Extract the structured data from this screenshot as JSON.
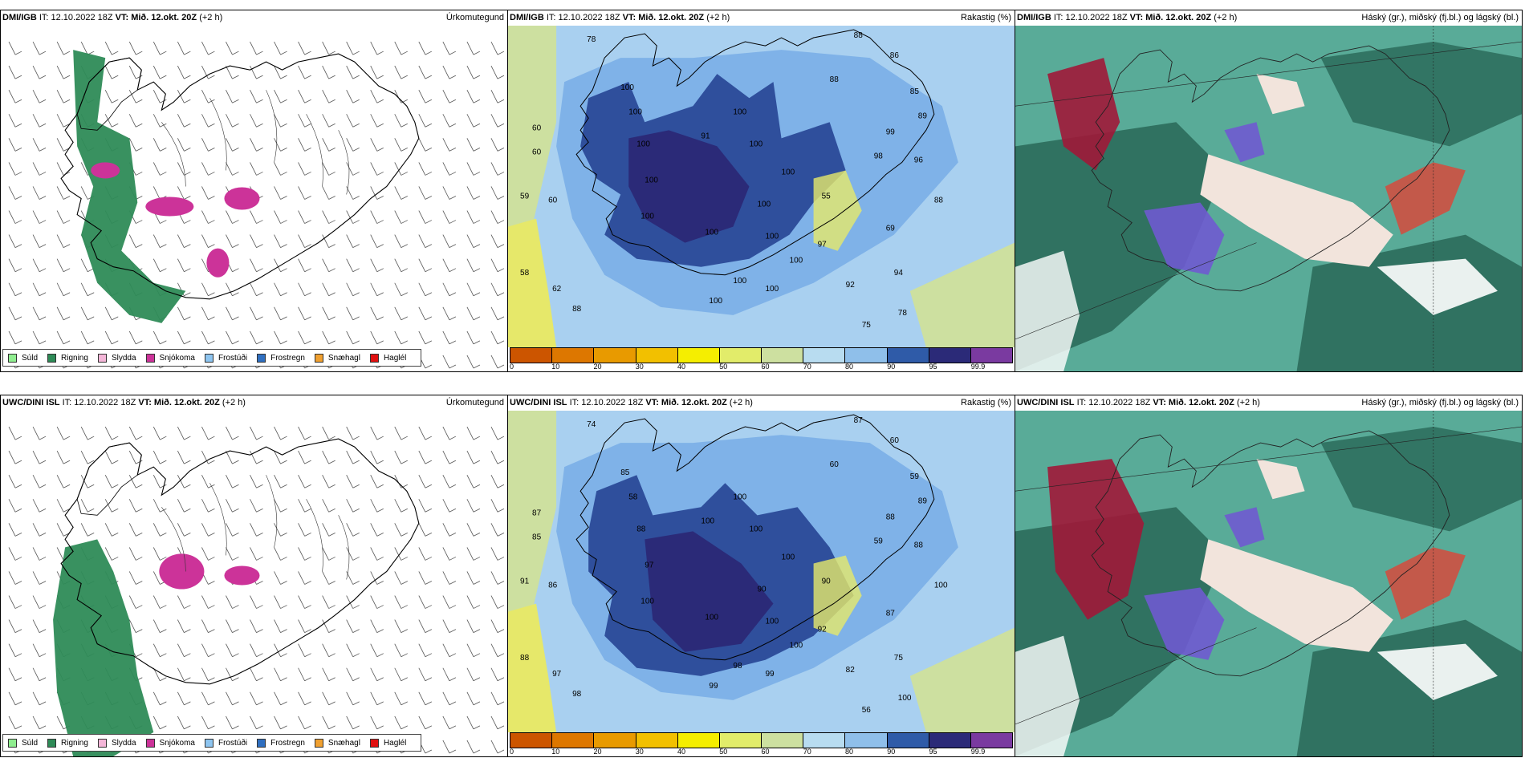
{
  "rows": [
    {
      "model": "DMI/IGB",
      "it": "IT: 12.10.2022 18Z",
      "vt_label": "VT:",
      "vt": "Mið. 12.okt. 20Z",
      "offset": "(+2 h)",
      "labels_rh": [
        "78",
        "88",
        "86",
        "88",
        "85",
        "89",
        "99",
        "98",
        "96",
        "60",
        "60",
        "59",
        "60",
        "58",
        "62",
        "88",
        "100",
        "100",
        "100",
        "100",
        "100",
        "100",
        "100",
        "100",
        "100",
        "100",
        "100",
        "100",
        "100",
        "100",
        "100",
        "91",
        "55",
        "97",
        "92",
        "94",
        "69",
        "78",
        "75",
        "88"
      ]
    },
    {
      "model": "UWC/DINI ISL",
      "it": "IT: 12.10.2022 18Z",
      "vt_label": "VT:",
      "vt": "Mið. 12.okt. 20Z",
      "offset": "(+2 h)",
      "labels_rh": [
        "74",
        "87",
        "60",
        "60",
        "59",
        "89",
        "88",
        "59",
        "88",
        "87",
        "85",
        "91",
        "86",
        "88",
        "97",
        "98",
        "85",
        "58",
        "88",
        "97",
        "100",
        "100",
        "100",
        "100",
        "90",
        "100",
        "100",
        "98",
        "99",
        "99",
        "100",
        "100",
        "90",
        "92",
        "82",
        "75",
        "87",
        "100",
        "56",
        "100"
      ]
    }
  ],
  "titles": {
    "precip": "Úrkomutegund",
    "rh": "Rakastig (%)",
    "clouds": "Háský (gr.), miðský (fj.bl.) og lágský (bl.)"
  },
  "precip_legend": [
    {
      "label": "Súld",
      "color": "#90ee90"
    },
    {
      "label": "Rigning",
      "color": "#2e8b57"
    },
    {
      "label": "Slydda",
      "color": "#f4b6d8"
    },
    {
      "label": "Snjókoma",
      "color": "#cc3399"
    },
    {
      "label": "Frostúði",
      "color": "#8ec5f0"
    },
    {
      "label": "Frostregn",
      "color": "#2f6fc0"
    },
    {
      "label": "Snæhagl",
      "color": "#f0a030"
    },
    {
      "label": "Haglél",
      "color": "#e01010"
    }
  ],
  "rh_colorbar": {
    "colors": [
      "#cc5500",
      "#dd7700",
      "#e89a00",
      "#f2c000",
      "#f5ee00",
      "#e2ec6a",
      "#cde0a0",
      "#b8dcf0",
      "#8fbfea",
      "#2f5ba8",
      "#2b2a78",
      "#7a3aa0"
    ],
    "ticks": [
      "0",
      "10",
      "20",
      "30",
      "40",
      "50",
      "60",
      "70",
      "80",
      "90",
      "95",
      "99.9"
    ]
  },
  "colors": {
    "rain": "#2e8b57",
    "snow": "#cc3399",
    "sleet": "#f4b6d8",
    "rh_low": "#e6e86a",
    "rh_mid": "#cde0a0",
    "rh_high": "#a9d0f0",
    "rh_very_high": "#7fb2e8",
    "rh_sat": "#2f4f9c",
    "rh_max": "#2b2a78",
    "cloud_low": "#2e6f5e",
    "cloud_mid": "#3c9c86",
    "cloud_high": "#6f5ad0",
    "cloud_red": "#a01838"
  }
}
